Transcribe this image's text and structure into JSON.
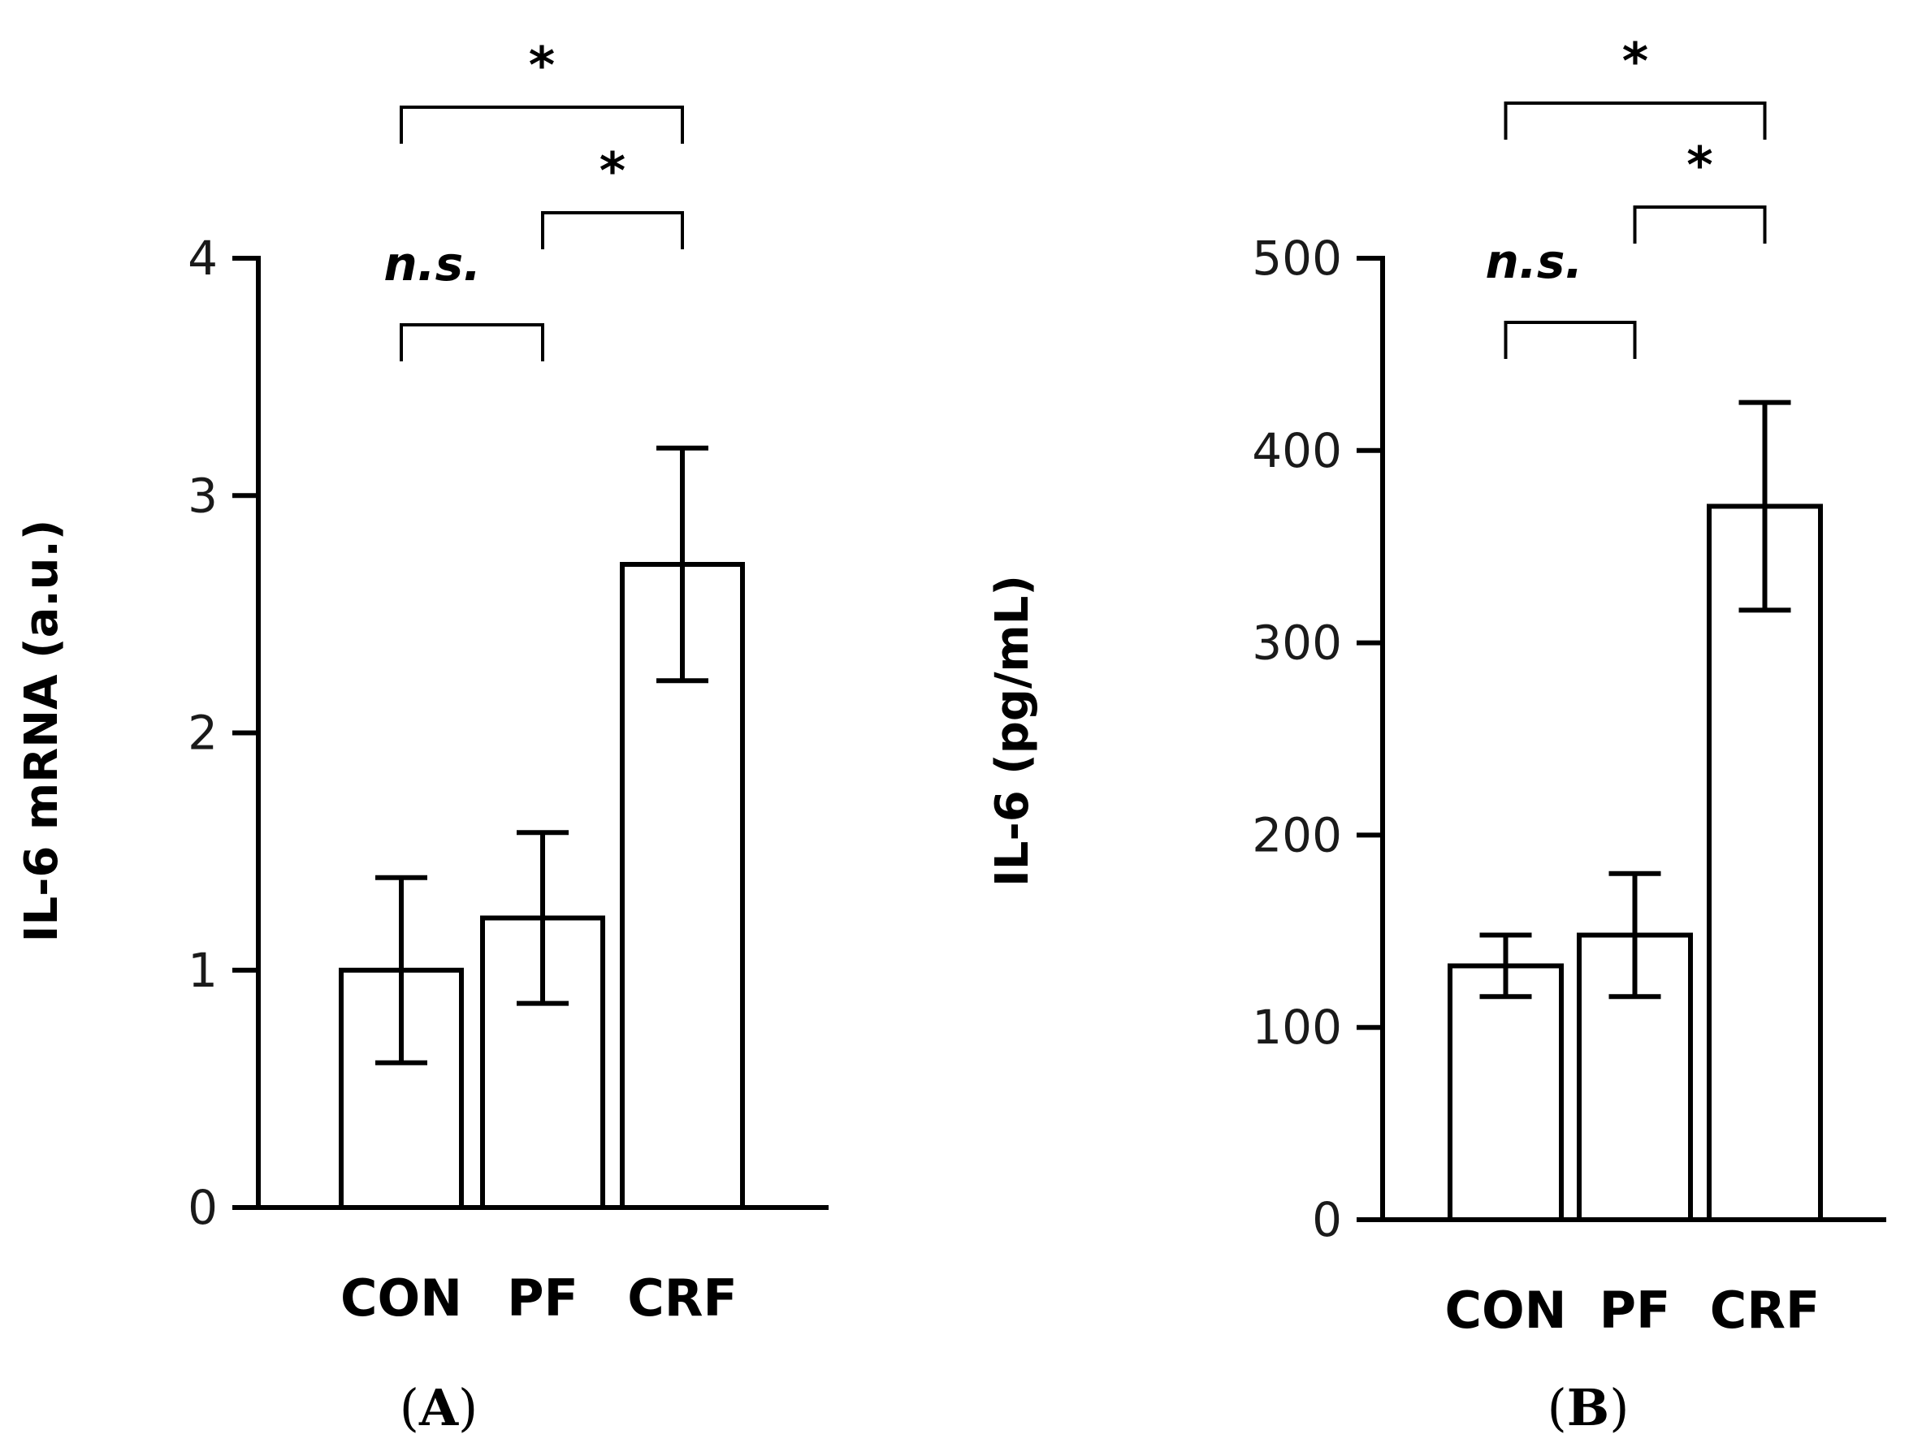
{
  "chart_data": [
    {
      "type": "bar",
      "panel": "A",
      "panel_label_open": "(",
      "panel_label_letter": "A",
      "panel_label_close": ")",
      "categories": [
        "CON",
        "PF",
        "CRF"
      ],
      "values": [
        1.0,
        1.22,
        2.71
      ],
      "errors": [
        0.39,
        0.36,
        0.49
      ],
      "ylabel": "IL-6 mRNA (a.u.)",
      "ylim": [
        0,
        4
      ],
      "yticks": [
        0,
        1,
        2,
        3,
        4
      ],
      "grid": false,
      "annotations": [
        {
          "from": "CON",
          "to": "CRF",
          "text": "*",
          "level": 3
        },
        {
          "from": "PF",
          "to": "CRF",
          "text": "*",
          "level": 2
        },
        {
          "from": "CON",
          "to": "PF",
          "text": "n.s.",
          "level": 1
        }
      ]
    },
    {
      "type": "bar",
      "panel": "B",
      "panel_label_open": "(",
      "panel_label_letter": "B",
      "panel_label_close": ")",
      "categories": [
        "CON",
        "PF",
        "CRF"
      ],
      "values": [
        132,
        148,
        371
      ],
      "errors": [
        16,
        32,
        54
      ],
      "ylabel": "IL-6 (pg/mL)",
      "ylim": [
        0,
        500
      ],
      "yticks": [
        0,
        100,
        200,
        300,
        400,
        500
      ],
      "grid": false,
      "annotations": [
        {
          "from": "CON",
          "to": "CRF",
          "text": "*",
          "level": 3
        },
        {
          "from": "PF",
          "to": "CRF",
          "text": "*",
          "level": 2
        },
        {
          "from": "CON",
          "to": "PF",
          "text": "n.s.",
          "level": 1
        }
      ]
    }
  ]
}
